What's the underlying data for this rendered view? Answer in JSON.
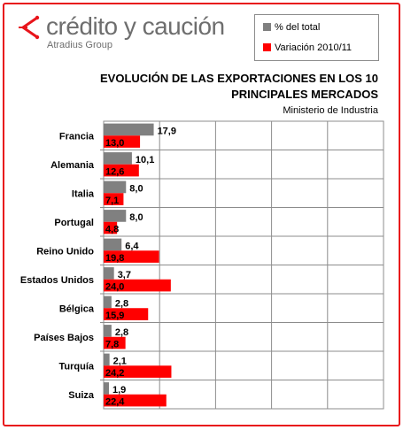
{
  "logo": {
    "name": "crédito y caución",
    "sub": "Atradius Group"
  },
  "colors": {
    "share": "#808080",
    "change": "#ff0000",
    "brand": "#e8141b"
  },
  "chart_data": {
    "type": "bar",
    "orientation": "horizontal",
    "title": "EVOLUCIÓN DE LAS EXPORTACIONES EN LOS 10 PRINCIPALES MERCADOS",
    "subtitle": "Ministerio de Industria",
    "categories": [
      "Francia",
      "Alemania",
      "Italia",
      "Portugal",
      "Reino Unido",
      "Estados Unidos",
      "Bélgica",
      "Países Bajos",
      "Turquía",
      "Suiza"
    ],
    "series": [
      {
        "name": "% del total",
        "values": [
          17.9,
          10.1,
          8.0,
          8.0,
          6.4,
          3.7,
          2.8,
          2.8,
          2.1,
          1.9
        ],
        "labels": [
          "17,9",
          "10,1",
          "8,0",
          "8,0",
          "6,4",
          "3,7",
          "2,8",
          "2,8",
          "2,1",
          "1,9"
        ]
      },
      {
        "name": "Variación 2010/11",
        "values": [
          13.0,
          12.6,
          7.1,
          4.8,
          19.8,
          24.0,
          15.9,
          7.8,
          24.2,
          22.4
        ],
        "labels": [
          "13,0",
          "12,6",
          "7,1",
          "4,8",
          "19,8",
          "24,0",
          "15,9",
          "7,8",
          "24,2",
          "22,4"
        ]
      }
    ],
    "xlim": [
      0,
      100
    ],
    "grid": true,
    "legend": "top-right"
  }
}
